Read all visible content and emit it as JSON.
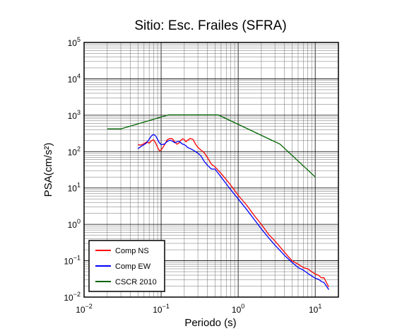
{
  "chart_data": {
    "type": "line",
    "title": "Sitio: Esc. Frailes (SFRA)",
    "xlabel": "Periodo (s)",
    "ylabel": "PSA(cm/s²)",
    "xscale": "log",
    "yscale": "log",
    "xlim": [
      0.01,
      20
    ],
    "ylim": [
      0.01,
      100000
    ],
    "grid": true,
    "legend_position": "bottom-left",
    "x_tick_labels": [
      {
        "base": "10",
        "exp": "−2"
      },
      {
        "base": "10",
        "exp": "−1"
      },
      {
        "base": "10",
        "exp": "0"
      },
      {
        "base": "10",
        "exp": "1"
      }
    ],
    "y_tick_labels": [
      {
        "base": "10",
        "exp": "−2"
      },
      {
        "base": "10",
        "exp": "−1"
      },
      {
        "base": "10",
        "exp": "0"
      },
      {
        "base": "10",
        "exp": "1"
      },
      {
        "base": "10",
        "exp": "2"
      },
      {
        "base": "10",
        "exp": "3"
      },
      {
        "base": "10",
        "exp": "4"
      },
      {
        "base": "10",
        "exp": "5"
      }
    ],
    "series": [
      {
        "name": "Comp NS",
        "color": "#ff0000",
        "x": [
          0.05,
          0.054,
          0.06,
          0.065,
          0.07,
          0.075,
          0.08,
          0.085,
          0.09,
          0.095,
          0.1,
          0.11,
          0.12,
          0.13,
          0.14,
          0.15,
          0.16,
          0.17,
          0.18,
          0.19,
          0.2,
          0.21,
          0.22,
          0.24,
          0.26,
          0.28,
          0.3,
          0.33,
          0.36,
          0.4,
          0.45,
          0.5,
          0.6,
          0.7,
          0.8,
          1.0,
          1.3,
          1.6,
          2.0,
          2.5,
          3.0,
          4.0,
          5.0,
          6.0,
          7.0,
          8.0,
          9.0,
          10.0,
          11.0,
          12.0,
          13.0,
          14.0,
          15.0
        ],
        "values": [
          155,
          150,
          165,
          185,
          170,
          200,
          210,
          170,
          130,
          105,
          110,
          150,
          210,
          230,
          225,
          185,
          160,
          170,
          205,
          225,
          215,
          185,
          205,
          230,
          215,
          160,
          130,
          110,
          95,
          68,
          45,
          38,
          25,
          17,
          12,
          6.3,
          3.3,
          1.8,
          1.0,
          0.52,
          0.35,
          0.17,
          0.1,
          0.08,
          0.065,
          0.06,
          0.05,
          0.043,
          0.04,
          0.034,
          0.034,
          0.025,
          0.019
        ]
      },
      {
        "name": "Comp EW",
        "color": "#0000ff",
        "x": [
          0.05,
          0.054,
          0.06,
          0.065,
          0.07,
          0.075,
          0.08,
          0.085,
          0.09,
          0.095,
          0.1,
          0.11,
          0.12,
          0.13,
          0.14,
          0.15,
          0.16,
          0.17,
          0.18,
          0.19,
          0.2,
          0.21,
          0.22,
          0.24,
          0.26,
          0.28,
          0.3,
          0.33,
          0.36,
          0.4,
          0.45,
          0.5,
          0.6,
          0.7,
          0.8,
          1.0,
          1.3,
          1.6,
          2.0,
          2.5,
          3.0,
          4.0,
          5.0,
          6.0,
          7.0,
          8.0,
          9.0,
          10.0,
          11.0,
          12.0,
          13.0,
          14.0,
          15.0
        ],
        "values": [
          120,
          135,
          155,
          175,
          220,
          270,
          295,
          270,
          215,
          175,
          155,
          160,
          190,
          205,
          195,
          175,
          185,
          190,
          175,
          160,
          155,
          145,
          130,
          120,
          110,
          100,
          90,
          75,
          55,
          42,
          33,
          33,
          20,
          13,
          9.0,
          5.0,
          2.5,
          1.4,
          0.75,
          0.42,
          0.27,
          0.14,
          0.09,
          0.065,
          0.055,
          0.045,
          0.038,
          0.033,
          0.031,
          0.027,
          0.025,
          0.02,
          0.016
        ]
      },
      {
        "name": "CSCR 2010",
        "color": "#006400",
        "x": [
          0.02,
          0.03,
          0.125,
          0.55,
          3.5,
          10.0
        ],
        "values": [
          420,
          420,
          1020,
          1020,
          160,
          20
        ]
      }
    ]
  }
}
